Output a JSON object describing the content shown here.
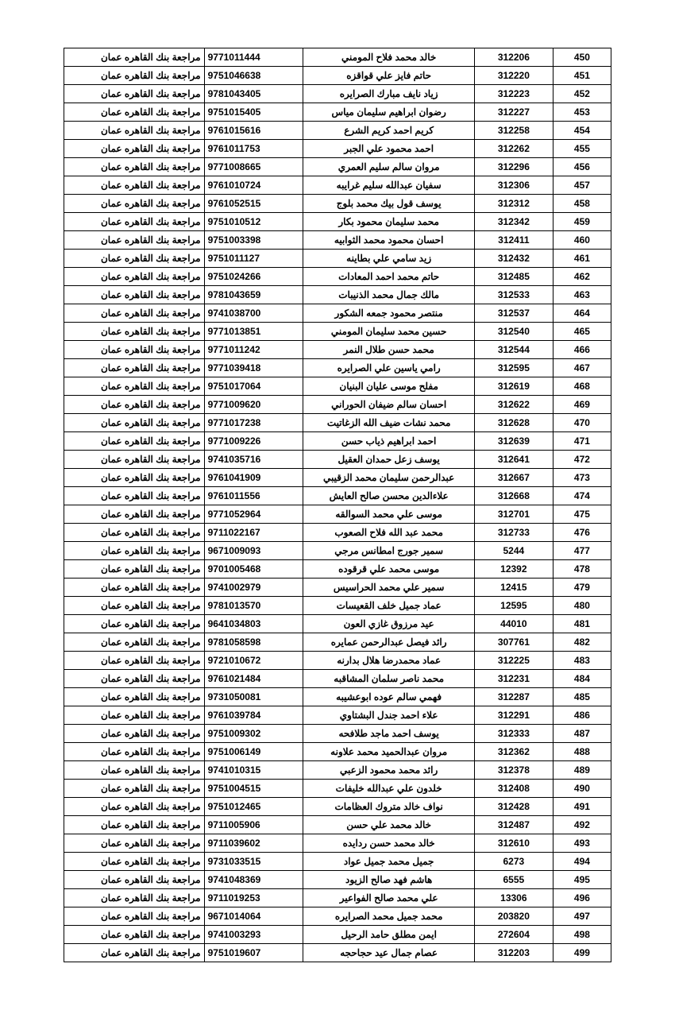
{
  "bank_text": "مراجعة بنك القاهره عمان",
  "rows": [
    {
      "n": 450,
      "code": 312206,
      "name": "خالد محمد فلاح المومني",
      "id": "9771011444"
    },
    {
      "n": 451,
      "code": 312220,
      "name": "حاتم فايز علي قواقزه",
      "id": "9751046638"
    },
    {
      "n": 452,
      "code": 312223,
      "name": "زياد نايف مبارك الصرايره",
      "id": "9781043405"
    },
    {
      "n": 453,
      "code": 312227,
      "name": "رضوان ابراهيم سليمان مياس",
      "id": "9751015405"
    },
    {
      "n": 454,
      "code": 312258,
      "name": "كريم احمد كريم الشرع",
      "id": "9761015616"
    },
    {
      "n": 455,
      "code": 312262,
      "name": "احمد محمود علي الجبر",
      "id": "9761011753"
    },
    {
      "n": 456,
      "code": 312296,
      "name": "مروان سالم سليم العمري",
      "id": "9771008665"
    },
    {
      "n": 457,
      "code": 312306,
      "name": "سفيان عبدالله سليم غرايبه",
      "id": "9761010724"
    },
    {
      "n": 458,
      "code": 312312,
      "name": "يوسف قول بيك محمد بلوج",
      "id": "9761052515"
    },
    {
      "n": 459,
      "code": 312342,
      "name": "محمد سليمان محمود بكار",
      "id": "9751010512"
    },
    {
      "n": 460,
      "code": 312411,
      "name": "احسان محمود محمد الثوابيه",
      "id": "9751003398"
    },
    {
      "n": 461,
      "code": 312432,
      "name": "زيد سامي علي بطاينه",
      "id": "9751011127"
    },
    {
      "n": 462,
      "code": 312485,
      "name": "حاتم محمد احمد المعادات",
      "id": "9751024266"
    },
    {
      "n": 463,
      "code": 312533,
      "name": "مالك جمال محمد الذنيبات",
      "id": "9781043659"
    },
    {
      "n": 464,
      "code": 312537,
      "name": "منتصر محمود جمعه الشكور",
      "id": "9741038700"
    },
    {
      "n": 465,
      "code": 312540,
      "name": "حسين محمد سليمان المومني",
      "id": "9771013851"
    },
    {
      "n": 466,
      "code": 312544,
      "name": "محمد حسن طلال النمر",
      "id": "9771011242"
    },
    {
      "n": 467,
      "code": 312595,
      "name": "رامي ياسين علي الصرايره",
      "id": "9771039418"
    },
    {
      "n": 468,
      "code": 312619,
      "name": "مفلح موسى عليان البنيان",
      "id": "9751017064"
    },
    {
      "n": 469,
      "code": 312622,
      "name": "احسان سالم ضيفان الحوراني",
      "id": "9771009620"
    },
    {
      "n": 470,
      "code": 312628,
      "name": "محمد نشات ضيف الله الزغاتيت",
      "id": "9771017238"
    },
    {
      "n": 471,
      "code": 312639,
      "name": "احمد ابراهيم ذياب حسن",
      "id": "9771009226"
    },
    {
      "n": 472,
      "code": 312641,
      "name": "يوسف زعل حمدان العقيل",
      "id": "9741035716"
    },
    {
      "n": 473,
      "code": 312667,
      "name": "عبدالرحمن سليمان محمد الزقيبي",
      "id": "9761041909"
    },
    {
      "n": 474,
      "code": 312668,
      "name": "علاءالدين محسن صالح العايش",
      "id": "9761011556"
    },
    {
      "n": 475,
      "code": 312701,
      "name": "موسى علي محمد السوالقه",
      "id": "9771052964"
    },
    {
      "n": 476,
      "code": 312733,
      "name": "محمد عبد الله فلاح الصعوب",
      "id": "9711022167"
    },
    {
      "n": 477,
      "code": 5244,
      "name": "سمير جورج امطانس مرجي",
      "id": "9671009093"
    },
    {
      "n": 478,
      "code": 12392,
      "name": "موسى محمد علي قرقوده",
      "id": "9701005468"
    },
    {
      "n": 479,
      "code": 12415,
      "name": "سمير علي محمد الحراسيس",
      "id": "9741002979"
    },
    {
      "n": 480,
      "code": 12595,
      "name": "عماد جميل خلف القعيسات",
      "id": "9781013570"
    },
    {
      "n": 481,
      "code": 44010,
      "name": "عيد مرزوق غازي العون",
      "id": "9641034803"
    },
    {
      "n": 482,
      "code": 307761,
      "name": "رائد فيصل عبدالرحمن عمايره",
      "id": "9781058598"
    },
    {
      "n": 483,
      "code": 312225,
      "name": "عماد محمدرضا هلال بدارنه",
      "id": "9721010672"
    },
    {
      "n": 484,
      "code": 312231,
      "name": "محمد ناصر سلمان المشاقبه",
      "id": "9761021484"
    },
    {
      "n": 485,
      "code": 312287,
      "name": "فهمي سالم عوده ابوعشيبه",
      "id": "9731050081"
    },
    {
      "n": 486,
      "code": 312291,
      "name": "علاء احمد جندل البشتاوي",
      "id": "9761039784"
    },
    {
      "n": 487,
      "code": 312333,
      "name": "يوسف احمد ماجد طلافحه",
      "id": "9751009302"
    },
    {
      "n": 488,
      "code": 312362,
      "name": "مروان عبدالحميد محمد علاونه",
      "id": "9751006149"
    },
    {
      "n": 489,
      "code": 312378,
      "name": "رائد محمد محمود الزعبي",
      "id": "9741010315"
    },
    {
      "n": 490,
      "code": 312408,
      "name": "خلدون علي عبدالله خليفات",
      "id": "9751004515"
    },
    {
      "n": 491,
      "code": 312428,
      "name": "نواف خالد متروك العظامات",
      "id": "9751012465"
    },
    {
      "n": 492,
      "code": 312487,
      "name": "خالد محمد علي حسن",
      "id": "9711005906"
    },
    {
      "n": 493,
      "code": 312610,
      "name": "خالد محمد حسن ردايده",
      "id": "9711039602"
    },
    {
      "n": 494,
      "code": 6273,
      "name": "جميل محمد جميل عواد",
      "id": "9731033515"
    },
    {
      "n": 495,
      "code": 6555,
      "name": "هاشم فهد صالح الزيود",
      "id": "9741048369"
    },
    {
      "n": 496,
      "code": 13306,
      "name": "علي محمد صالح الفواعير",
      "id": "9711019253"
    },
    {
      "n": 497,
      "code": 203820,
      "name": "محمد جميل محمد الصرايره",
      "id": "9671014064"
    },
    {
      "n": 498,
      "code": 272604,
      "name": "ايمن مطلق حامد الرحيل",
      "id": "9741003293"
    },
    {
      "n": 499,
      "code": 312203,
      "name": "عصام جمال عيد حجاحجه",
      "id": "9751019607"
    }
  ]
}
